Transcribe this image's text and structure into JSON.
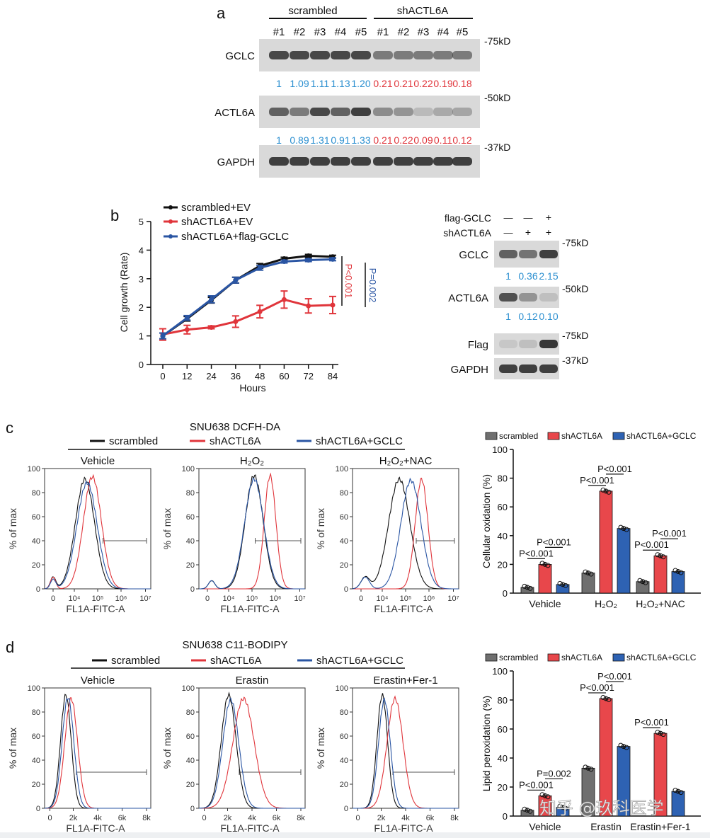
{
  "colors": {
    "black": "#111111",
    "red": "#e0353b",
    "blue": "#2a55a3",
    "text_blue": "#2b8fd0",
    "text_red": "#e0353b",
    "band": "#2e2e2e",
    "membrane": "#d9d9d9",
    "gray_bar": "#6f6f6f",
    "red_bar": "#e8474b",
    "blue_bar": "#2e62b3"
  },
  "panel_a": {
    "letter": "a",
    "groups": [
      "scrambled",
      "shACTL6A"
    ],
    "lanes": [
      "#1",
      "#2",
      "#3",
      "#4",
      "#5",
      "#1",
      "#2",
      "#3",
      "#4",
      "#5"
    ],
    "rows": [
      {
        "label": "GCLC",
        "marker": "-75kD",
        "quant": [
          "1",
          "1.09",
          "1.11",
          "1.13",
          "1.20",
          "0.21",
          "0.21",
          "0.22",
          "0.19",
          "0.18"
        ]
      },
      {
        "label": "ACTL6A",
        "marker": "-50kD",
        "quant": [
          "1",
          "0.89",
          "1.31",
          "0.91",
          "1.33",
          "0.21",
          "0.22",
          "0.09",
          "0.11",
          "0.12"
        ]
      },
      {
        "label": "GAPDH",
        "marker": "-37kD",
        "quant": []
      }
    ]
  },
  "panel_b": {
    "letter": "b",
    "legend": [
      "scrambled+EV",
      "shACTL6A+EV",
      "shACTL6A+flag-GCLC"
    ],
    "ylabel": "Cell growth (Rate)",
    "xlabel": "Hours",
    "p_red": "P<0.001",
    "p_blue": "P=0.002",
    "blot_header": {
      "rows": [
        "flag-GCLC",
        "shACTL6A"
      ],
      "signs": [
        [
          "—",
          "—",
          "+"
        ],
        [
          "—",
          "+",
          "+"
        ]
      ]
    },
    "blot_rows": [
      {
        "label": "GCLC",
        "marker": "-75kD",
        "quant": [
          "1",
          "0.36",
          "2.15"
        ]
      },
      {
        "label": "ACTL6A",
        "marker": "-50kD",
        "quant": [
          "1",
          "0.12",
          "0.10"
        ]
      },
      {
        "label": "Flag",
        "marker": "-75kD",
        "quant": []
      },
      {
        "label": "GAPDH",
        "marker": "-37kD",
        "quant": []
      }
    ]
  },
  "panel_c": {
    "letter": "c",
    "title": "SNU638 DCFH-DA",
    "legend": [
      "scrambled",
      "shACTL6A",
      "shACTL6A+GCLC"
    ],
    "histos": [
      "Vehicle",
      "H₂O₂",
      "H₂O₂+NAC"
    ],
    "hist_ylabel": "% of max",
    "hist_xlabel": "FL1A-FITC-A",
    "hist_yticks": [
      "0",
      "20",
      "40",
      "60",
      "80",
      "100"
    ],
    "hist_xticks": [
      "0",
      "10⁴",
      "10⁵",
      "10⁶",
      "10⁷"
    ],
    "bar_legend": [
      "scrambled",
      "shACTL6A",
      "shACTL6A+GCLC"
    ],
    "bar_ylabel": "Cellular oxidation (%)",
    "pvals": [
      {
        "text": "P<0.001",
        "group": 0,
        "pair": "1-2",
        "level": 0
      },
      {
        "text": "P<0.001",
        "group": 0,
        "pair": "2-3",
        "level": 1
      },
      {
        "text": "P<0.001",
        "group": 1,
        "pair": "1-2",
        "level": 0
      },
      {
        "text": "P<0.001",
        "group": 1,
        "pair": "2-3",
        "level": 1
      },
      {
        "text": "P<0.001",
        "group": 2,
        "pair": "1-2",
        "level": 0
      },
      {
        "text": "P<0.001",
        "group": 2,
        "pair": "2-3",
        "level": 1
      }
    ]
  },
  "panel_d": {
    "letter": "d",
    "title": "SNU638 C11-BODIPY",
    "legend": [
      "scrambled",
      "shACTL6A",
      "shACTL6A+GCLC"
    ],
    "histos": [
      "Vehicle",
      "Erastin",
      "Erastin+Fer-1"
    ],
    "hist_ylabel": "% of max",
    "hist_xlabel": "FL1A-FITC-A",
    "hist_yticks": [
      "0",
      "20",
      "40",
      "60",
      "80",
      "100"
    ],
    "hist_xticks": [
      "0",
      "2k",
      "4k",
      "6k",
      "8k"
    ],
    "bar_legend": [
      "scrambled",
      "shACTL6A",
      "shACTL6A+GCLC"
    ],
    "bar_ylabel": "Lipid peroxidation (%)",
    "pvals": [
      {
        "text": "P<0.001",
        "group": 0,
        "pair": "1-2",
        "level": 0
      },
      {
        "text": "P=0.002",
        "group": 0,
        "pair": "2-3",
        "level": 1
      },
      {
        "text": "P<0.001",
        "group": 1,
        "pair": "1-2",
        "level": 0
      },
      {
        "text": "P<0.001",
        "group": 1,
        "pair": "2-3",
        "level": 1
      },
      {
        "text": "P<0.001",
        "group": 2,
        "pair": "1-2",
        "level": 0
      }
    ]
  },
  "watermark": "知乎 @玖科医学",
  "chart_data": [
    {
      "type": "line",
      "title": "Cell growth",
      "xlabel": "Hours",
      "ylabel": "Cell growth (Rate)",
      "x": [
        0,
        12,
        24,
        36,
        48,
        60,
        72,
        84
      ],
      "xlim": [
        0,
        84
      ],
      "ylim": [
        0,
        5
      ],
      "yticks": [
        0,
        1,
        2,
        3,
        4,
        5
      ],
      "series": [
        {
          "name": "scrambled+EV",
          "color": "#111111",
          "values": [
            1.0,
            1.6,
            2.25,
            2.95,
            3.45,
            3.7,
            3.8,
            3.77
          ],
          "err": [
            0.1,
            0.08,
            0.1,
            0.1,
            0.08,
            0.05,
            0.05,
            0.05
          ]
        },
        {
          "name": "shACTL6A+EV",
          "color": "#e0353b",
          "values": [
            1.05,
            1.22,
            1.3,
            1.5,
            1.85,
            2.27,
            2.05,
            2.08
          ],
          "err": [
            0.2,
            0.15,
            0.05,
            0.2,
            0.22,
            0.3,
            0.25,
            0.3
          ]
        },
        {
          "name": "shACTL6A+flag-GCLC",
          "color": "#2a55a3",
          "values": [
            1.0,
            1.63,
            2.28,
            2.95,
            3.38,
            3.6,
            3.65,
            3.68
          ],
          "err": [
            0.1,
            0.08,
            0.12,
            0.1,
            0.08,
            0.05,
            0.05,
            0.05
          ]
        }
      ]
    },
    {
      "type": "bar",
      "ylabel": "Cellular oxidation (%)",
      "categories": [
        "Vehicle",
        "H₂O₂",
        "H₂O₂+NAC"
      ],
      "ylim": [
        0,
        100
      ],
      "yticks": [
        0,
        20,
        40,
        60,
        80,
        100
      ],
      "series": [
        {
          "name": "scrambled",
          "values": [
            4,
            14,
            8
          ]
        },
        {
          "name": "shACTL6A",
          "values": [
            20,
            71,
            26
          ]
        },
        {
          "name": "shACTL6A+GCLC",
          "values": [
            6,
            45,
            15
          ]
        }
      ]
    },
    {
      "type": "bar",
      "ylabel": "Lipid peroxidation (%)",
      "categories": [
        "Vehicle",
        "Erastin",
        "Erastin+Fer-1"
      ],
      "ylim": [
        0,
        100
      ],
      "yticks": [
        0,
        20,
        40,
        60,
        80,
        100
      ],
      "series": [
        {
          "name": "scrambled",
          "values": [
            4,
            33,
            0
          ]
        },
        {
          "name": "shACTL6A",
          "values": [
            14,
            81,
            57
          ]
        },
        {
          "name": "shACTL6A+GCLC",
          "values": [
            6,
            48,
            17
          ]
        }
      ]
    }
  ]
}
